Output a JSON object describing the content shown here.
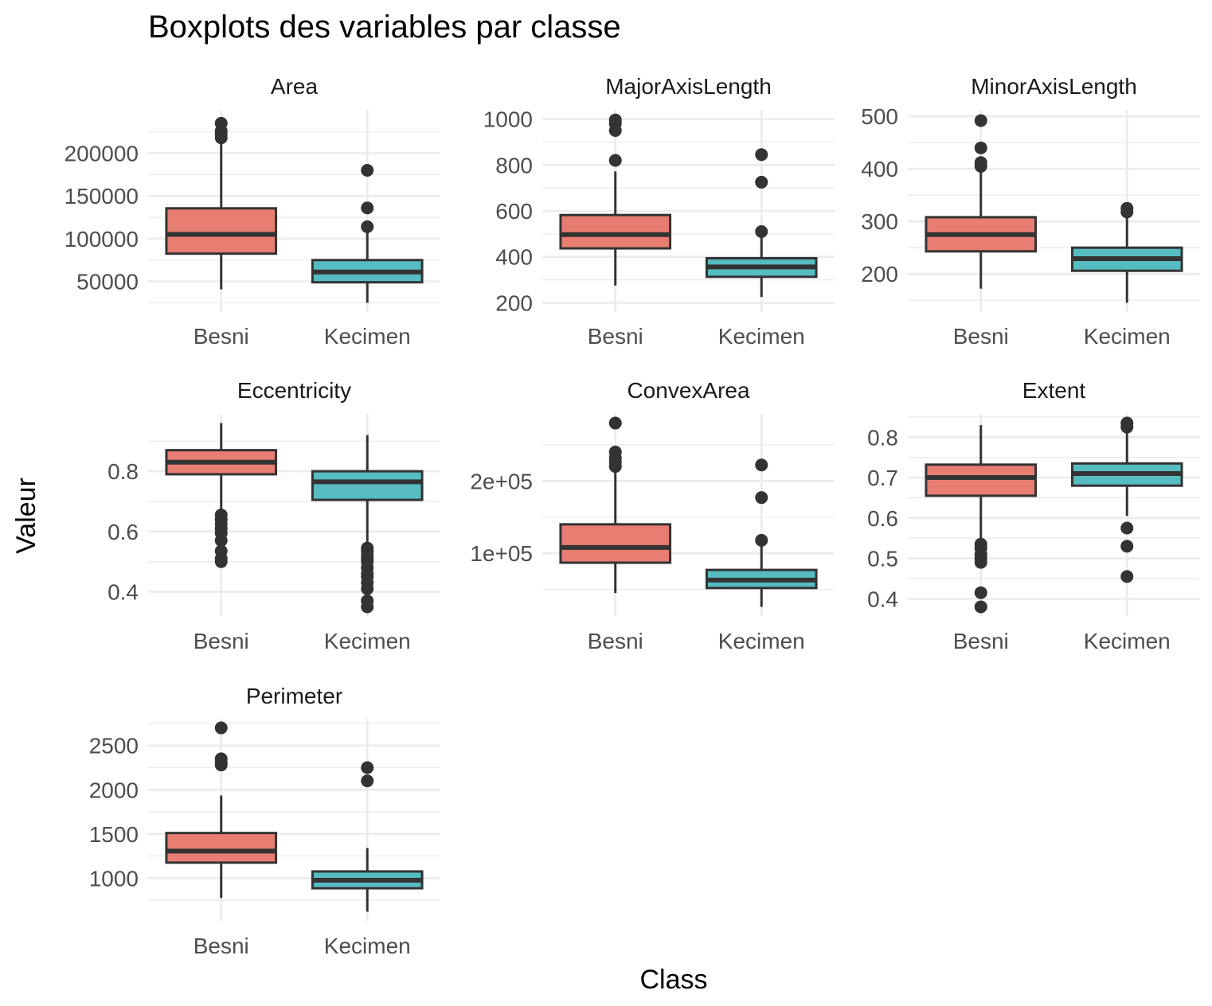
{
  "chart_data": {
    "type": "boxplot",
    "title": "Boxplots des variables par classe",
    "xlabel": "Class",
    "ylabel": "Valeur",
    "categories": [
      "Besni",
      "Kecimen"
    ],
    "colors": {
      "Besni": "#E87D72",
      "Kecimen": "#56BCC2",
      "outline": "#333333",
      "grid": "#EBEBEB"
    },
    "grid": true,
    "legend": "none",
    "panels": [
      {
        "name": "Area",
        "ylim": [
          25000,
          240000
        ],
        "yticks": [
          50000,
          100000,
          150000,
          200000
        ],
        "ytick_labels": [
          "50000",
          "100000",
          "150000",
          "200000"
        ],
        "boxes": [
          {
            "class": "Besni",
            "whisker_low": 40700,
            "q1": 82500,
            "median": 105000,
            "q3": 135500,
            "whisker_high": 214000,
            "outliers": [
              218000,
              222000,
              226000,
              235000
            ]
          },
          {
            "class": "Kecimen",
            "whisker_low": 25000,
            "q1": 49000,
            "median": 61000,
            "q3": 75000,
            "whisker_high": 111000,
            "outliers": [
              114000,
              136000,
              180000
            ]
          }
        ]
      },
      {
        "name": "MajorAxisLength",
        "ylim": [
          200,
          1000
        ],
        "yticks": [
          200,
          400,
          600,
          800,
          1000
        ],
        "ytick_labels": [
          "200",
          "400",
          "600",
          "800",
          "1000"
        ],
        "boxes": [
          {
            "class": "Besni",
            "whisker_low": 275,
            "q1": 437,
            "median": 497,
            "q3": 582,
            "whisker_high": 772,
            "outliers": [
              820,
              950,
              980,
              996
            ]
          },
          {
            "class": "Kecimen",
            "whisker_low": 225,
            "q1": 313,
            "median": 356,
            "q3": 394,
            "whisker_high": 487,
            "outliers": [
              510,
              725,
              845
            ]
          }
        ]
      },
      {
        "name": "MinorAxisLength",
        "ylim": [
          145,
          495
        ],
        "yticks": [
          200,
          300,
          400,
          500
        ],
        "ytick_labels": [
          "200",
          "300",
          "400",
          "500"
        ],
        "boxes": [
          {
            "class": "Besni",
            "whisker_low": 172,
            "q1": 243,
            "median": 275,
            "q3": 308,
            "whisker_high": 403,
            "outliers": [
              405,
              412,
              440,
              492
            ]
          },
          {
            "class": "Kecimen",
            "whisker_low": 145,
            "q1": 206,
            "median": 229,
            "q3": 250,
            "whisker_high": 314,
            "outliers": [
              318,
              325
            ]
          }
        ]
      },
      {
        "name": "Eccentricity",
        "ylim": [
          0.35,
          0.96
        ],
        "yticks": [
          0.4,
          0.6,
          0.8
        ],
        "ytick_labels": [
          "0.4",
          "0.6",
          "0.8"
        ],
        "boxes": [
          {
            "class": "Besni",
            "whisker_low": 0.66,
            "q1": 0.79,
            "median": 0.83,
            "q3": 0.87,
            "whisker_high": 0.96,
            "outliers": [
              0.5,
              0.51,
              0.535,
              0.57,
              0.595,
              0.61,
              0.625,
              0.64,
              0.655
            ]
          },
          {
            "class": "Kecimen",
            "whisker_low": 0.55,
            "q1": 0.705,
            "median": 0.765,
            "q3": 0.8,
            "whisker_high": 0.92,
            "outliers": [
              0.35,
              0.37,
              0.41,
              0.43,
              0.45,
              0.46,
              0.48,
              0.5,
              0.51,
              0.52,
              0.535,
              0.545
            ]
          }
        ]
      },
      {
        "name": "ConvexArea",
        "ylim": [
          26000,
          280000
        ],
        "yticks": [
          100000,
          200000
        ],
        "ytick_labels": [
          "1e+05",
          "2e+05"
        ],
        "boxes": [
          {
            "class": "Besni",
            "whisker_low": 45000,
            "q1": 87000,
            "median": 108000,
            "q3": 140000,
            "whisker_high": 215000,
            "outliers": [
              220000,
              226000,
              232000,
              240000,
              280000
            ]
          },
          {
            "class": "Kecimen",
            "whisker_low": 26000,
            "q1": 52000,
            "median": 63000,
            "q3": 77000,
            "whisker_high": 112000,
            "outliers": [
              118000,
              177000,
              222000
            ]
          }
        ]
      },
      {
        "name": "Extent",
        "ylim": [
          0.38,
          0.835
        ],
        "yticks": [
          0.4,
          0.5,
          0.6,
          0.7,
          0.8
        ],
        "ytick_labels": [
          "0.4",
          "0.5",
          "0.6",
          "0.7",
          "0.8"
        ],
        "boxes": [
          {
            "class": "Besni",
            "whisker_low": 0.54,
            "q1": 0.655,
            "median": 0.7,
            "q3": 0.732,
            "whisker_high": 0.83,
            "outliers": [
              0.38,
              0.415,
              0.49,
              0.5,
              0.51,
              0.525,
              0.535
            ]
          },
          {
            "class": "Kecimen",
            "whisker_low": 0.605,
            "q1": 0.68,
            "median": 0.71,
            "q3": 0.735,
            "whisker_high": 0.82,
            "outliers": [
              0.455,
              0.53,
              0.575,
              0.825,
              0.835
            ]
          }
        ]
      },
      {
        "name": "Perimeter",
        "ylim": [
          620,
          2700
        ],
        "yticks": [
          1000,
          1500,
          2000,
          2500
        ],
        "ytick_labels": [
          "1000",
          "1500",
          "2000",
          "2500"
        ],
        "boxes": [
          {
            "class": "Besni",
            "whisker_low": 775,
            "q1": 1175,
            "median": 1305,
            "q3": 1510,
            "whisker_high": 1935,
            "outliers": [
              2280,
              2310,
              2350,
              2700
            ]
          },
          {
            "class": "Kecimen",
            "whisker_low": 620,
            "q1": 885,
            "median": 975,
            "q3": 1075,
            "whisker_high": 1340,
            "outliers": [
              2100,
              2250
            ]
          }
        ]
      }
    ]
  }
}
